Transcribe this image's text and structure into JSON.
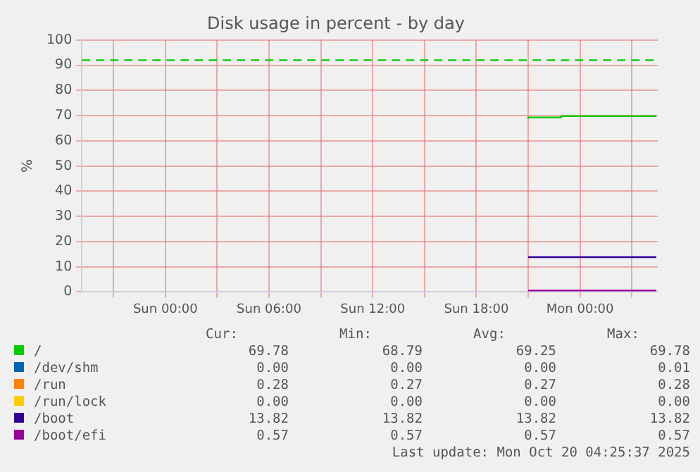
{
  "chart_data": {
    "type": "step",
    "title": "Disk usage in percent - by day",
    "ylabel": "%",
    "x": [
      "2025-10-19T21:00",
      "2025-10-19T22:55",
      "2025-10-20T01:15",
      "2025-10-20T04:25"
    ],
    "xlim": [
      "2025-10-18T19:10",
      "2025-10-20T04:30"
    ],
    "xticks": [
      {
        "value": "2025-10-18T21:00",
        "label": null
      },
      {
        "value": "2025-10-19T00:00",
        "label": "Sun 00:00"
      },
      {
        "value": "2025-10-19T03:00",
        "label": null
      },
      {
        "value": "2025-10-19T06:00",
        "label": "Sun 06:00"
      },
      {
        "value": "2025-10-19T09:00",
        "label": null
      },
      {
        "value": "2025-10-19T12:00",
        "label": "Sun 12:00"
      },
      {
        "value": "2025-10-19T15:00",
        "label": null
      },
      {
        "value": "2025-10-19T18:00",
        "label": "Sun 18:00"
      },
      {
        "value": "2025-10-19T21:00",
        "label": null
      },
      {
        "value": "2025-10-20T00:00",
        "label": "Mon 00:00"
      },
      {
        "value": "2025-10-20T03:00",
        "label": null
      }
    ],
    "ylim": [
      0,
      100
    ],
    "yticks": [
      0,
      10,
      20,
      30,
      40,
      50,
      60,
      70,
      80,
      90,
      100
    ],
    "grid": true,
    "legend": "bottom",
    "series": [
      {
        "name": "/",
        "color": "#00cc00",
        "values": [
          68.79,
          69.25,
          69.78,
          69.78
        ]
      },
      {
        "name": "/dev/shm",
        "color": "#0066b3",
        "values": [
          null,
          null,
          null,
          null
        ]
      },
      {
        "name": "/run",
        "color": "#ff8000",
        "values": [
          null,
          null,
          null,
          null
        ]
      },
      {
        "name": "/run/lock",
        "color": "#ffcc00",
        "values": [
          null,
          null,
          null,
          null
        ]
      },
      {
        "name": "/boot",
        "color": "#330099",
        "values": [
          13.82,
          13.82,
          13.82,
          13.82
        ]
      },
      {
        "name": "/boot/efi",
        "color": "#990099",
        "values": [
          0.57,
          0.57,
          0.57,
          0.57
        ]
      }
    ],
    "ref_lines": [
      {
        "axis": "y",
        "value": 92,
        "label": null,
        "color": "#00cc00",
        "line_style": "dashed"
      }
    ],
    "annotations": [
      "Cur:",
      "Min:",
      "Avg:",
      "Max:",
      "69.78",
      "68.79",
      "69.25",
      "69.78",
      "0.00",
      "0.00",
      "0.00",
      "0.01",
      "0.28",
      "0.27",
      "0.27",
      "0.28",
      "0.00",
      "0.00",
      "0.00",
      "0.00",
      "13.82",
      "13.82",
      "13.82",
      "13.82",
      "0.57",
      "0.57",
      "0.57",
      "0.57",
      "Last update: Mon Oct 20 04:25:37 2025"
    ]
  }
}
